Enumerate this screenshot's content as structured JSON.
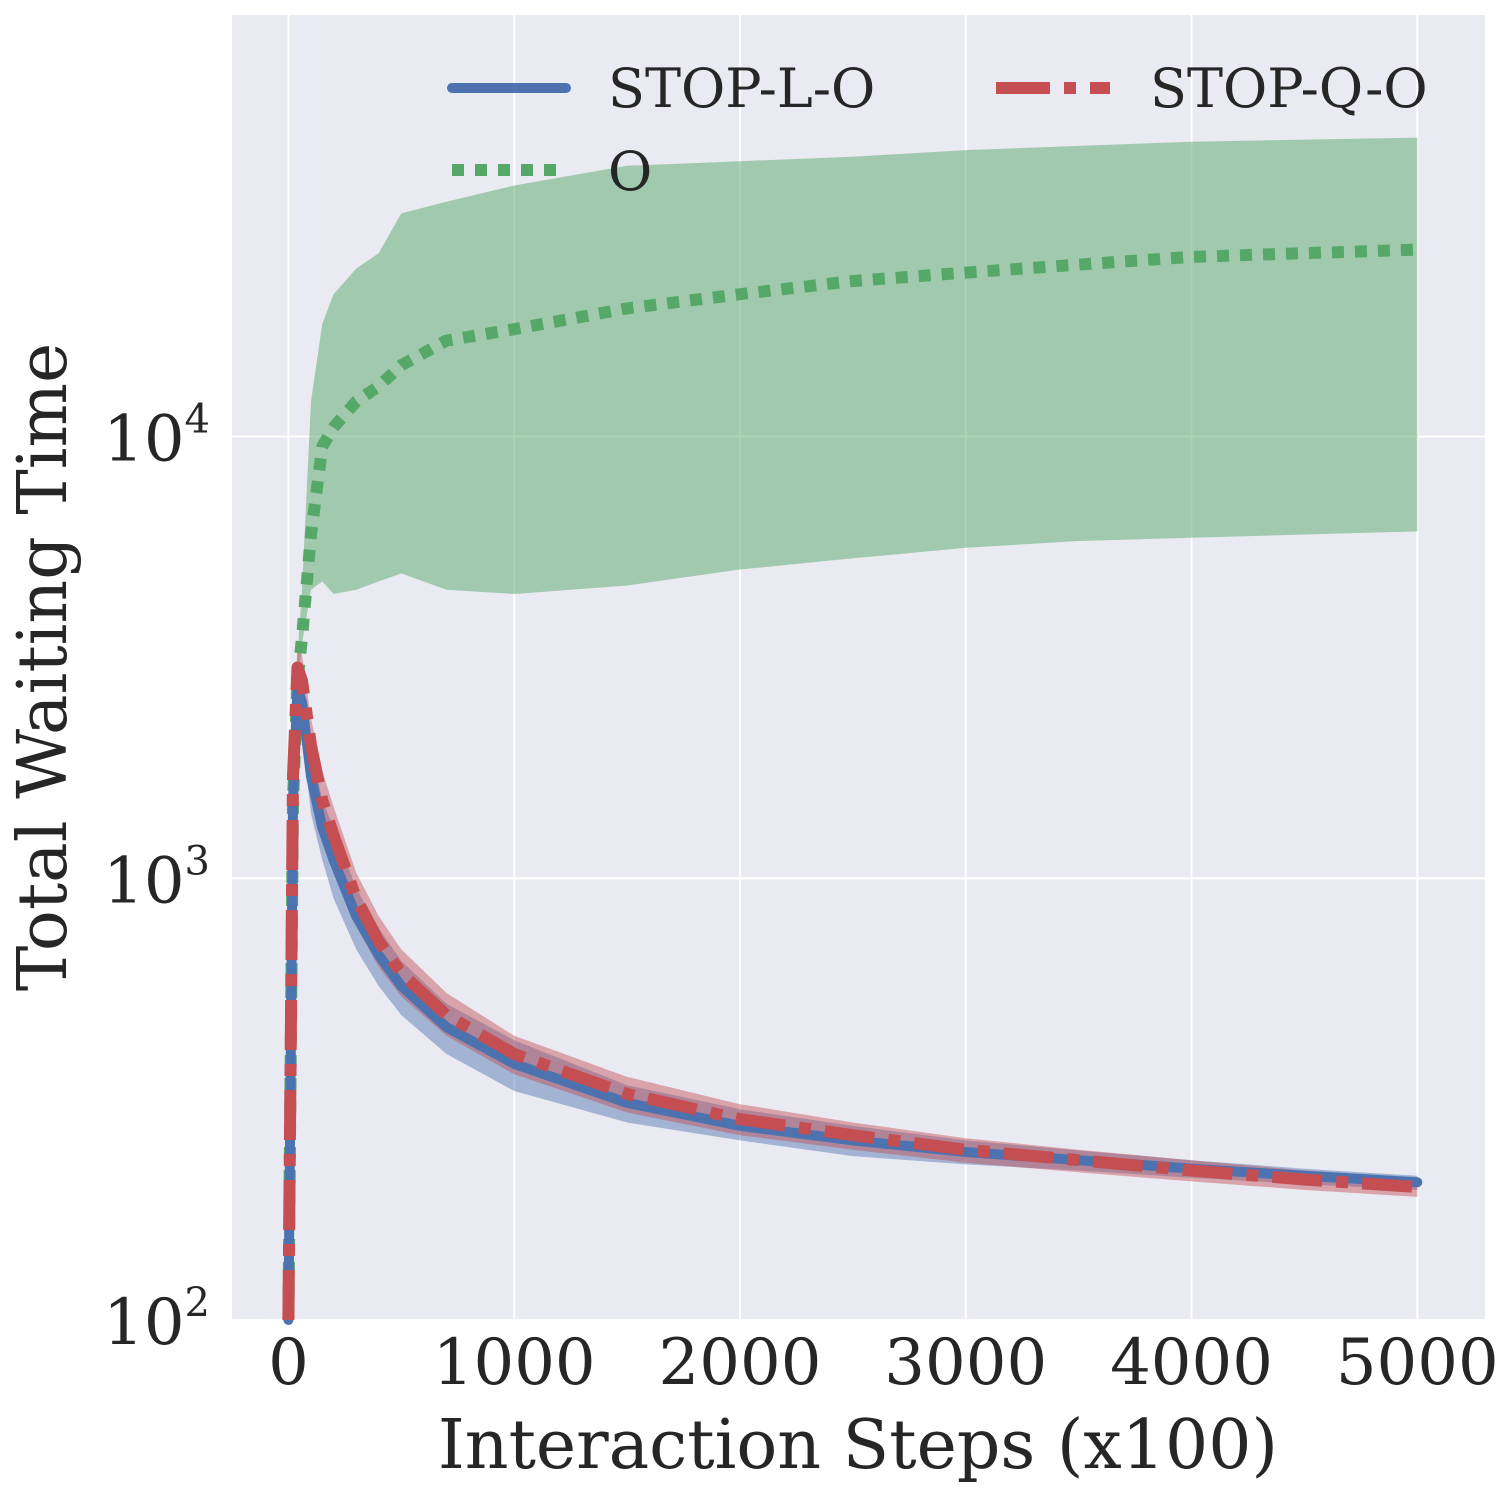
{
  "chart_data": {
    "type": "line",
    "title": "",
    "xlabel": "Interaction Steps (x100)",
    "ylabel": "Total Waiting Time",
    "xlim": [
      -250,
      5300
    ],
    "ylim": [
      100,
      90000
    ],
    "yscale": "log",
    "grid": true,
    "legend": "top-right",
    "x_ticks": [
      {
        "value": 0,
        "label": "0"
      },
      {
        "value": 1000,
        "label": "1000"
      },
      {
        "value": 2000,
        "label": "2000"
      },
      {
        "value": 3000,
        "label": "3000"
      },
      {
        "value": 4000,
        "label": "4000"
      },
      {
        "value": 5000,
        "label": "5000"
      }
    ],
    "y_ticks": [
      {
        "value": 100,
        "base": "10",
        "exp": "2"
      },
      {
        "value": 1000,
        "base": "10",
        "exp": "3"
      },
      {
        "value": 10000,
        "base": "10",
        "exp": "4"
      }
    ],
    "series": [
      {
        "name": "STOP-L-O",
        "color": "#4c72b0",
        "band_color": "#4c72b0",
        "style": "solid",
        "x": [
          0,
          20,
          40,
          60,
          100,
          150,
          200,
          300,
          400,
          500,
          700,
          1000,
          1500,
          2000,
          2500,
          3000,
          3500,
          4000,
          4500,
          5000
        ],
        "y": [
          100,
          1500,
          2700,
          2500,
          1700,
          1300,
          1100,
          820,
          670,
          570,
          460,
          380,
          310,
          275,
          255,
          240,
          230,
          220,
          212,
          205
        ],
        "lower": [
          100,
          1200,
          2300,
          2100,
          1400,
          1100,
          900,
          690,
          570,
          490,
          400,
          330,
          280,
          255,
          235,
          225,
          218,
          210,
          203,
          197
        ],
        "upper": [
          100,
          1800,
          3100,
          2900,
          2000,
          1500,
          1300,
          950,
          770,
          650,
          520,
          430,
          340,
          300,
          275,
          255,
          242,
          230,
          220,
          212
        ]
      },
      {
        "name": "STOP-Q-O",
        "color": "#c44e52",
        "band_color": "#c44e52",
        "style": "dashdot",
        "x": [
          0,
          20,
          40,
          60,
          100,
          150,
          200,
          300,
          400,
          500,
          700,
          1000,
          1500,
          2000,
          2500,
          3000,
          3500,
          4000,
          4500,
          5000
        ],
        "y": [
          100,
          1700,
          3000,
          2800,
          2000,
          1500,
          1250,
          900,
          720,
          610,
          490,
          400,
          325,
          285,
          262,
          243,
          230,
          218,
          208,
          200
        ],
        "lower": [
          100,
          1400,
          2600,
          2400,
          1700,
          1300,
          1050,
          780,
          630,
          540,
          440,
          360,
          295,
          262,
          243,
          227,
          216,
          206,
          197,
          190
        ],
        "upper": [
          100,
          2000,
          3400,
          3200,
          2300,
          1750,
          1450,
          1030,
          820,
          690,
          550,
          440,
          355,
          308,
          280,
          258,
          243,
          230,
          218,
          210
        ]
      },
      {
        "name": "O",
        "color": "#55a868",
        "band_color": "#55a868",
        "style": "dotted",
        "x": [
          0,
          20,
          40,
          60,
          100,
          150,
          200,
          300,
          400,
          500,
          700,
          1000,
          1500,
          2000,
          2500,
          3000,
          3500,
          4000,
          4500,
          5000
        ],
        "y": [
          100,
          1500,
          2800,
          3500,
          6000,
          9500,
          10500,
          12000,
          13000,
          14500,
          16500,
          17500,
          19500,
          21000,
          22500,
          23500,
          24500,
          25500,
          26000,
          26500
        ],
        "lower": [
          100,
          1500,
          2800,
          3400,
          4500,
          4700,
          4400,
          4500,
          4700,
          4900,
          4500,
          4400,
          4600,
          5000,
          5300,
          5600,
          5800,
          5900,
          6000,
          6100
        ],
        "upper": [
          100,
          1500,
          3200,
          4500,
          12000,
          18000,
          21000,
          24000,
          26000,
          32000,
          34000,
          37000,
          41000,
          42000,
          43000,
          44500,
          45500,
          46500,
          47000,
          47500
        ]
      }
    ]
  }
}
